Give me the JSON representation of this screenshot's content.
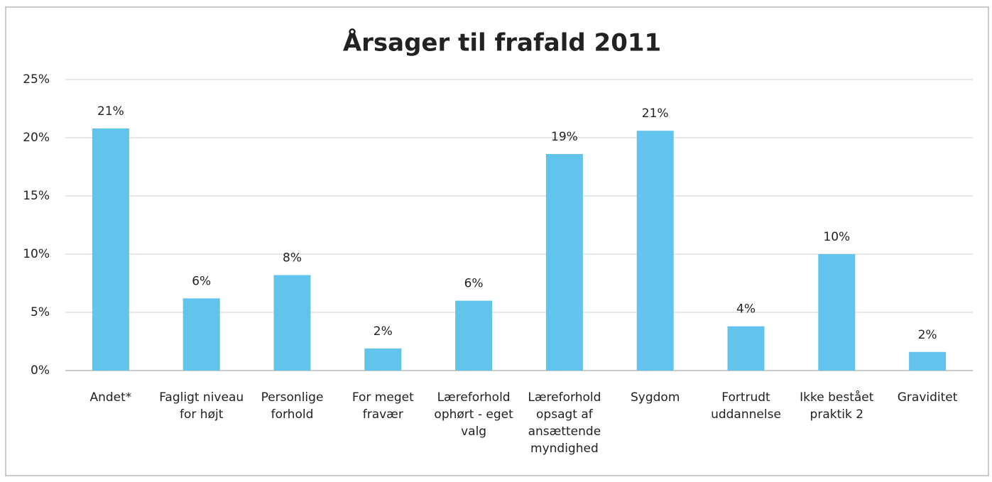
{
  "chart_data": {
    "type": "bar",
    "title": "Årsager til frafald 2011",
    "categories": [
      "Andet*",
      "Fagligt niveau for højt",
      "Personlige forhold",
      "For meget fravær",
      "Læreforhold ophørt - eget valg",
      "Læreforhold opsagt af ansættende myndighed",
      "Sygdom",
      "Fortrudt uddannelse",
      "Ikke bestået praktik 2",
      "Graviditet"
    ],
    "values": [
      20.8,
      6.2,
      8.2,
      1.9,
      6.0,
      18.6,
      20.6,
      3.8,
      10.0,
      1.6
    ],
    "value_labels": [
      "21%",
      "6%",
      "8%",
      "2%",
      "6%",
      "19%",
      "21%",
      "4%",
      "10%",
      "2%"
    ],
    "color": "#62c4ec",
    "ylim": [
      0,
      25
    ],
    "yticks": [
      {
        "value": 0,
        "label": "0%"
      },
      {
        "value": 5,
        "label": "5%"
      },
      {
        "value": 10,
        "label": "10%"
      },
      {
        "value": 15,
        "label": "15%"
      },
      {
        "value": 20,
        "label": "20%"
      },
      {
        "value": 25,
        "label": "25%"
      }
    ],
    "grid": true
  }
}
